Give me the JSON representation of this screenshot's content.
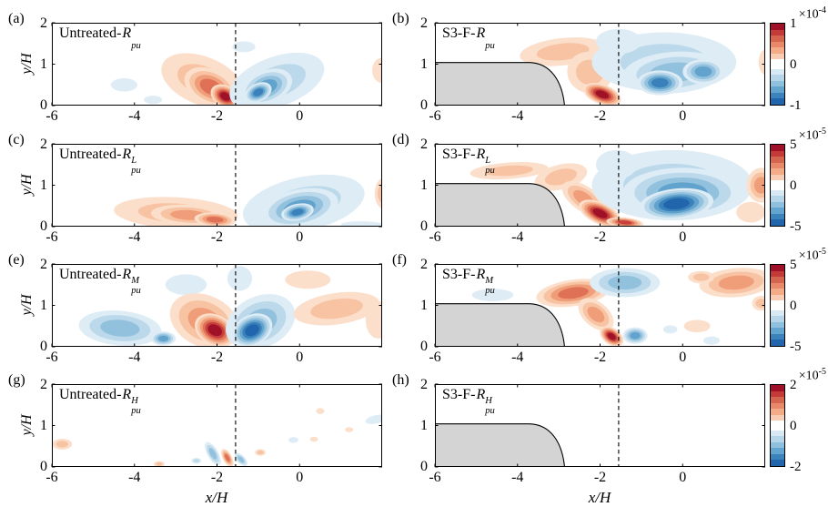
{
  "axes": {
    "xlabel": "x/H",
    "ylabel": "y/H",
    "xticks": [
      "-6",
      "-4",
      "-2",
      "0"
    ],
    "yticks": [
      "2",
      "1",
      "0"
    ],
    "xtick_vals": [
      -6,
      -4,
      -2,
      0
    ],
    "ytick_vals": [
      0,
      1,
      2
    ],
    "xlim": [
      -6,
      2
    ],
    "ylim": [
      0,
      2
    ],
    "dashed_line_x": -1.55
  },
  "palette": {
    "positive": [
      "#fbdfcb",
      "#f7c3a3",
      "#f09d79",
      "#df7156",
      "#c7403d",
      "#9e1127"
    ],
    "negative": [
      "#ddecf5",
      "#bcd9eb",
      "#92c1de",
      "#62a3cd",
      "#3a80ba",
      "#2166ac"
    ],
    "body_fill": "#d4d4d4",
    "colorbar": [
      "#9e1127",
      "#c23b39",
      "#d5654f",
      "#e88a69",
      "#f3ab88",
      "#f9cdb4",
      "#ffffff",
      "#d9e9f3",
      "#b7d5e9",
      "#8fc0dd",
      "#63a5ce",
      "#3c83bc",
      "#2166ac"
    ]
  },
  "colorbars": [
    {
      "scale_base": "×10",
      "scale_exp": "-4",
      "tick_top": "1",
      "tick_mid": "0",
      "tick_bot": "-1",
      "limits": [
        -0.0001,
        0.0001
      ]
    },
    {
      "scale_base": "×10",
      "scale_exp": "-5",
      "tick_top": "5",
      "tick_mid": "0",
      "tick_bot": "-5",
      "limits": [
        -5e-05,
        5e-05
      ]
    },
    {
      "scale_base": "×10",
      "scale_exp": "-5",
      "tick_top": "5",
      "tick_mid": "0",
      "tick_bot": "-5",
      "limits": [
        -5e-05,
        5e-05
      ]
    },
    {
      "scale_base": "×10",
      "scale_exp": "-5",
      "tick_top": "2",
      "tick_mid": "0",
      "tick_bot": "-2",
      "limits": [
        -2e-05,
        2e-05
      ]
    }
  ],
  "chart_data": {
    "type": "filled_contour",
    "grid": "4 rows x 2 columns, shared x-axis -6..2 (x/H), y-axis 0..2 (y/H), vertical dashed reference line at x/H = -1.55, diverging red-white-blue colormap",
    "body": {
      "x_start": -6,
      "height": 1.04,
      "flat_end": -3.7,
      "c1": [
        -3.2,
        1.02
      ],
      "c2": [
        -2.92,
        0.6
      ],
      "nose_x": -2.86
    },
    "panels": {
      "a": {
        "letter": "(a)",
        "title_prefix": "Untreated-",
        "symbol": "R",
        "sup": "",
        "sub": "pu",
        "body": false,
        "blobs": [
          [
            -2.35,
            0.6,
            1.05,
            0.58,
            22,
            1,
            2
          ],
          [
            -2.15,
            0.45,
            0.68,
            0.42,
            25,
            1,
            4
          ],
          [
            -1.8,
            0.22,
            0.38,
            0.26,
            30,
            1,
            6
          ],
          [
            -0.55,
            0.58,
            1.2,
            0.6,
            -20,
            -1,
            2
          ],
          [
            -0.8,
            0.45,
            0.65,
            0.4,
            -22,
            -1,
            4
          ],
          [
            -1.0,
            0.32,
            0.34,
            0.22,
            -25,
            -1,
            5
          ],
          [
            -1.35,
            1.42,
            0.28,
            0.13,
            0,
            -1,
            1
          ],
          [
            -4.25,
            0.5,
            0.32,
            0.16,
            0,
            -1,
            1
          ],
          [
            -3.55,
            0.14,
            0.22,
            0.1,
            0,
            -1,
            1
          ],
          [
            1.98,
            0.85,
            0.22,
            0.3,
            0,
            1,
            1
          ]
        ]
      },
      "b": {
        "letter": "(b)",
        "title_prefix": "S3-F-",
        "symbol": "R",
        "sup": "",
        "sub": "pu",
        "body": true,
        "blobs": [
          [
            -2.9,
            1.3,
            1.05,
            0.33,
            -6,
            1,
            2
          ],
          [
            -2.25,
            0.8,
            0.55,
            0.5,
            15,
            1,
            2
          ],
          [
            -1.95,
            0.27,
            0.48,
            0.24,
            20,
            1,
            6
          ],
          [
            -0.45,
            1.05,
            1.75,
            0.72,
            0,
            -1,
            2
          ],
          [
            -0.2,
            0.8,
            1.25,
            0.5,
            -4,
            -1,
            3
          ],
          [
            -0.55,
            0.55,
            0.55,
            0.3,
            0,
            -1,
            5
          ],
          [
            0.5,
            0.82,
            0.5,
            0.3,
            0,
            -1,
            4
          ],
          [
            -1.55,
            1.55,
            0.55,
            0.3,
            0,
            -1,
            1
          ],
          [
            2.0,
            1.05,
            0.16,
            0.3,
            0,
            1,
            1
          ]
        ]
      },
      "c": {
        "letter": "(c)",
        "title_prefix": "Untreated-",
        "symbol": "R",
        "sup": "L",
        "sub": "pu",
        "body": false,
        "blobs": [
          [
            -3.0,
            0.33,
            1.5,
            0.38,
            3,
            1,
            2
          ],
          [
            -2.7,
            0.28,
            0.9,
            0.25,
            3,
            1,
            3
          ],
          [
            -2.05,
            0.17,
            0.5,
            0.17,
            4,
            1,
            4
          ],
          [
            0.1,
            0.55,
            1.5,
            0.65,
            -12,
            -1,
            2
          ],
          [
            0.0,
            0.45,
            0.95,
            0.45,
            -12,
            -1,
            4
          ],
          [
            -0.05,
            0.35,
            0.4,
            0.2,
            -12,
            -1,
            5
          ],
          [
            2.0,
            0.8,
            0.18,
            0.35,
            0,
            1,
            2
          ],
          [
            1.5,
            0.05,
            0.5,
            0.08,
            0,
            -1,
            1
          ]
        ]
      },
      "d": {
        "letter": "(d)",
        "title_prefix": "S3-F-",
        "symbol": "R",
        "sup": "L",
        "sub": "pu",
        "body": true,
        "blobs": [
          [
            -4.2,
            1.35,
            0.95,
            0.2,
            -4,
            1,
            2
          ],
          [
            -2.95,
            1.2,
            0.65,
            0.3,
            -14,
            1,
            2
          ],
          [
            -2.4,
            0.68,
            0.6,
            0.3,
            35,
            1,
            3
          ],
          [
            -2.0,
            0.32,
            0.55,
            0.26,
            25,
            1,
            6
          ],
          [
            -1.4,
            0.1,
            0.45,
            0.12,
            5,
            1,
            5
          ],
          [
            -0.25,
            1.0,
            1.95,
            0.85,
            0,
            -1,
            2
          ],
          [
            0.0,
            0.82,
            1.45,
            0.6,
            0,
            -1,
            4
          ],
          [
            -0.15,
            0.55,
            0.9,
            0.37,
            -6,
            -1,
            6
          ],
          [
            -1.6,
            1.5,
            0.5,
            0.35,
            0,
            -1,
            1
          ],
          [
            1.9,
            1.0,
            0.35,
            0.42,
            0,
            1,
            3
          ],
          [
            1.65,
            0.35,
            0.35,
            0.25,
            0,
            1,
            1
          ]
        ]
      },
      "e": {
        "letter": "(e)",
        "title_prefix": "Untreated-",
        "symbol": "R",
        "sup": "M",
        "sub": "pu",
        "body": false,
        "blobs": [
          [
            -4.35,
            0.45,
            1.0,
            0.42,
            5,
            -1,
            3
          ],
          [
            -3.3,
            0.2,
            0.3,
            0.17,
            0,
            -1,
            4
          ],
          [
            -2.75,
            1.5,
            0.5,
            0.25,
            0,
            -1,
            1
          ],
          [
            -1.45,
            1.65,
            0.3,
            0.3,
            0,
            -1,
            1
          ],
          [
            -2.3,
            0.62,
            0.88,
            0.62,
            25,
            1,
            3
          ],
          [
            -2.05,
            0.4,
            0.52,
            0.37,
            28,
            1,
            6
          ],
          [
            -0.95,
            0.6,
            0.88,
            0.62,
            -25,
            -1,
            3
          ],
          [
            -1.15,
            0.4,
            0.52,
            0.37,
            -28,
            -1,
            6
          ],
          [
            0.9,
            0.92,
            1.05,
            0.38,
            -8,
            1,
            2
          ],
          [
            0.2,
            1.62,
            0.55,
            0.22,
            0,
            1,
            1
          ],
          [
            1.9,
            0.65,
            0.3,
            0.45,
            0,
            1,
            1
          ]
        ]
      },
      "f": {
        "letter": "(f)",
        "title_prefix": "S3-F-",
        "symbol": "R",
        "sup": "M",
        "sub": "pu",
        "body": true,
        "blobs": [
          [
            -4.6,
            1.25,
            0.5,
            0.15,
            0,
            -1,
            1
          ],
          [
            -2.65,
            1.3,
            0.9,
            0.32,
            -8,
            1,
            4
          ],
          [
            -2.1,
            0.78,
            0.5,
            0.3,
            40,
            1,
            3
          ],
          [
            -1.72,
            0.25,
            0.32,
            0.2,
            35,
            1,
            6
          ],
          [
            -1.4,
            1.55,
            0.85,
            0.35,
            0,
            -1,
            3
          ],
          [
            -1.15,
            0.27,
            0.3,
            0.2,
            0,
            -1,
            4
          ],
          [
            1.3,
            1.55,
            0.9,
            0.35,
            -5,
            1,
            3
          ],
          [
            0.45,
            1.68,
            0.32,
            0.15,
            0,
            1,
            2
          ],
          [
            0.35,
            0.5,
            0.32,
            0.15,
            0,
            1,
            1
          ],
          [
            0.7,
            0.15,
            0.2,
            0.1,
            0,
            -1,
            1
          ],
          [
            -0.3,
            0.42,
            0.17,
            0.1,
            0,
            -1,
            1
          ],
          [
            1.9,
            1.05,
            0.22,
            0.18,
            0,
            1,
            2
          ]
        ]
      },
      "g": {
        "letter": "(g)",
        "title_prefix": "Untreated-",
        "symbol": "R",
        "sup": "H",
        "sub": "pu",
        "body": false,
        "blobs": [
          [
            -5.75,
            0.55,
            0.24,
            0.13,
            0,
            1,
            2
          ],
          [
            -3.4,
            0.07,
            0.13,
            0.07,
            0,
            1,
            2
          ],
          [
            -2.5,
            0.15,
            0.12,
            0.07,
            0,
            -1,
            2
          ],
          [
            -2.1,
            0.32,
            0.32,
            0.13,
            60,
            -1,
            3
          ],
          [
            -1.75,
            0.22,
            0.24,
            0.11,
            62,
            1,
            4
          ],
          [
            -1.42,
            0.18,
            0.2,
            0.1,
            45,
            -1,
            3
          ],
          [
            -0.95,
            0.35,
            0.13,
            0.08,
            0,
            1,
            2
          ],
          [
            -0.15,
            0.65,
            0.12,
            0.07,
            0,
            -1,
            1
          ],
          [
            0.35,
            0.67,
            0.1,
            0.06,
            0,
            1,
            1
          ],
          [
            0.5,
            1.35,
            0.1,
            0.07,
            0,
            1,
            1
          ],
          [
            1.85,
            1.15,
            0.26,
            0.1,
            -12,
            -1,
            1
          ],
          [
            1.2,
            0.9,
            0.1,
            0.06,
            0,
            1,
            1
          ]
        ]
      },
      "h": {
        "letter": "(h)",
        "title_prefix": "S3-F-",
        "symbol": "R",
        "sup": "H",
        "sub": "pu",
        "body": true,
        "blobs": []
      }
    }
  }
}
